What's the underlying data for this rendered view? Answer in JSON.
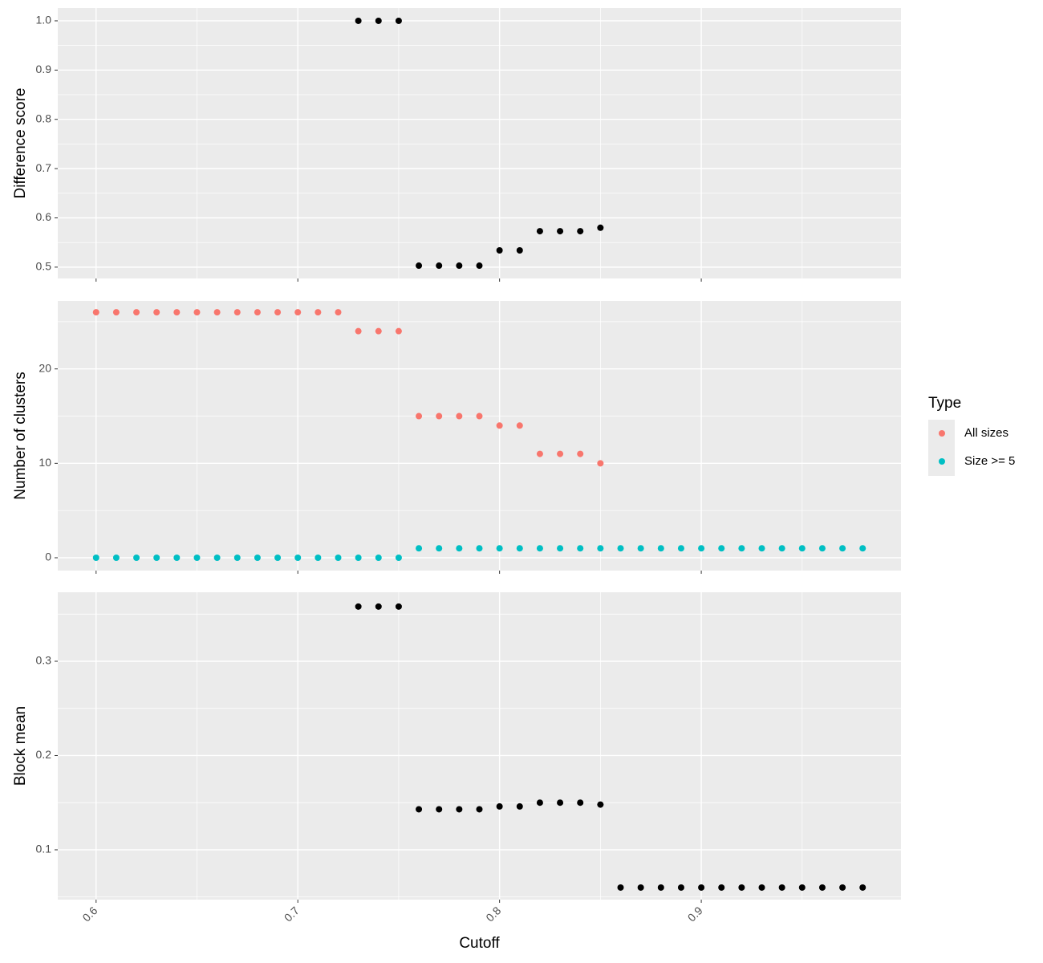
{
  "chart_data": [
    {
      "type": "scatter",
      "y_label": "Difference score",
      "x": [
        0.73,
        0.74,
        0.75,
        0.76,
        0.77,
        0.78,
        0.79,
        0.8,
        0.81,
        0.82,
        0.83,
        0.84,
        0.85
      ],
      "values": [
        1,
        1,
        1,
        0.503,
        0.503,
        0.503,
        0.503,
        0.534,
        0.534,
        0.573,
        0.573,
        0.573,
        0.58
      ],
      "color": "#000000",
      "xlim": [
        0.581,
        0.999
      ],
      "xticks": [
        0.6,
        0.7,
        0.8,
        0.9
      ],
      "x_tick_labels": false,
      "ylim": [
        0.477,
        1.026
      ],
      "yticks": [
        0.5,
        0.6,
        0.7,
        0.8,
        0.9,
        {
          "value": 1,
          "label": "1.0"
        }
      ],
      "grid": true
    },
    {
      "type": "scatter",
      "y_label": "Number of clusters",
      "x": [
        0.6,
        0.61,
        0.62,
        0.63,
        0.64,
        0.65,
        0.66,
        0.67,
        0.68,
        0.69,
        0.7,
        0.71,
        0.72,
        0.73,
        0.74,
        0.75,
        0.76,
        0.77,
        0.78,
        0.79,
        0.8,
        0.81,
        0.82,
        0.83,
        0.84,
        0.85,
        0.86,
        0.87,
        0.88,
        0.89,
        0.9,
        0.91,
        0.92,
        0.93,
        0.94,
        0.95,
        0.96,
        0.97,
        0.98
      ],
      "series": [
        {
          "name": "All sizes",
          "color": "#F8766D",
          "values": [
            26,
            26,
            26,
            26,
            26,
            26,
            26,
            26,
            26,
            26,
            26,
            26,
            26,
            24,
            24,
            24,
            15,
            15,
            15,
            15,
            14,
            14,
            11,
            11,
            11,
            10,
            null,
            null,
            null,
            null,
            null,
            null,
            null,
            null,
            null,
            null,
            null,
            null,
            null
          ]
        },
        {
          "name": "Size >= 5",
          "color": "#00BFC4",
          "values": [
            0,
            0,
            0,
            0,
            0,
            0,
            0,
            0,
            0,
            0,
            0,
            0,
            0,
            0,
            0,
            0,
            1,
            1,
            1,
            1,
            1,
            1,
            1,
            1,
            1,
            1,
            1,
            1,
            1,
            1,
            1,
            1,
            1,
            1,
            1,
            1,
            1,
            1,
            1
          ]
        }
      ],
      "legend_title": "Type",
      "legend": "right",
      "xlim": [
        0.581,
        0.999
      ],
      "xticks": [
        0.6,
        0.7,
        0.8,
        0.9
      ],
      "x_tick_labels": false,
      "ylim": [
        -1.36,
        27.2
      ],
      "yticks": [
        0,
        10,
        20
      ],
      "grid": true
    },
    {
      "type": "scatter",
      "y_label": "Block mean",
      "x_label": "Cutoff",
      "x": [
        0.73,
        0.74,
        0.75,
        0.76,
        0.77,
        0.78,
        0.79,
        0.8,
        0.81,
        0.82,
        0.83,
        0.84,
        0.85,
        0.86,
        0.87,
        0.88,
        0.89,
        0.9,
        0.91,
        0.92,
        0.93,
        0.94,
        0.95,
        0.96,
        0.97,
        0.98
      ],
      "values": [
        0.358,
        0.358,
        0.358,
        0.143,
        0.143,
        0.143,
        0.143,
        0.146,
        0.146,
        0.15,
        0.15,
        0.15,
        0.148,
        0.06,
        0.06,
        0.06,
        0.06,
        0.06,
        0.06,
        0.06,
        0.06,
        0.06,
        0.06,
        0.06,
        0.06,
        0.06
      ],
      "color": "#000000",
      "xlim": [
        0.581,
        0.999
      ],
      "xticks": [
        0.6,
        0.7,
        0.8,
        0.9
      ],
      "x_tick_labels": true,
      "ylim": [
        0.0472,
        0.3732
      ],
      "yticks": [
        0.1,
        0.2,
        0.3
      ],
      "grid": true
    }
  ]
}
